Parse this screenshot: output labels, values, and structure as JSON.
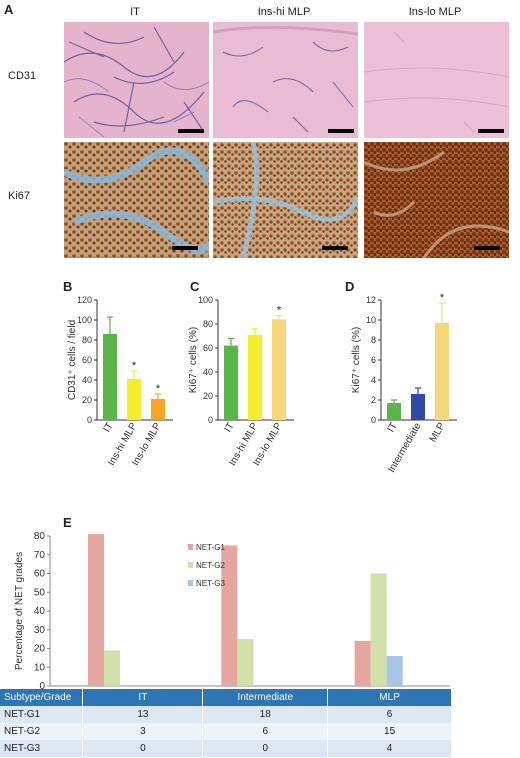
{
  "panel_a": {
    "letter": "A",
    "columns": [
      "IT",
      "Ins-hi MLP",
      "Ins-lo MLP"
    ],
    "rows": [
      "CD31",
      "Ki67"
    ]
  },
  "panel_b": {
    "letter": "B"
  },
  "panel_c": {
    "letter": "C"
  },
  "panel_d": {
    "letter": "D"
  },
  "panel_e": {
    "letter": "E"
  },
  "table": {
    "header": [
      "Subtype/Grade",
      "IT",
      "Intermediate",
      "MLP"
    ],
    "rows": [
      [
        "NET-G1",
        "13",
        "18",
        "6"
      ],
      [
        "NET-G2",
        "3",
        "6",
        "15"
      ],
      [
        "NET-G3",
        "0",
        "0",
        "4"
      ]
    ]
  },
  "chart_data": [
    {
      "id": "B",
      "type": "bar",
      "categories": [
        "IT",
        "Ins-hi MLP",
        "Ins-lo MLP"
      ],
      "values": [
        86,
        41,
        21
      ],
      "errors": [
        17,
        8,
        5
      ],
      "significance": [
        "",
        "*",
        "*"
      ],
      "colors": [
        "#5ab54a",
        "#f5ec2a",
        "#f5a623"
      ],
      "ylabel": "CD31⁺ cells / field",
      "ylim": [
        0,
        120
      ],
      "yticks": [
        0,
        20,
        40,
        60,
        80,
        100,
        120
      ]
    },
    {
      "id": "C",
      "type": "bar",
      "categories": [
        "IT",
        "Ins-hi MLP",
        "Ins-lo MLP"
      ],
      "values": [
        62,
        71,
        84
      ],
      "errors": [
        6,
        5,
        3
      ],
      "significance": [
        "",
        "",
        "*"
      ],
      "colors": [
        "#5ab54a",
        "#f5ec2a",
        "#f8d77a"
      ],
      "ylabel": "Ki67⁺ cells (%)",
      "ylim": [
        0,
        100
      ],
      "yticks": [
        0,
        20,
        40,
        60,
        80,
        100
      ]
    },
    {
      "id": "D",
      "type": "bar",
      "categories": [
        "IT",
        "Intermediate",
        "MLP"
      ],
      "values": [
        1.7,
        2.6,
        9.7
      ],
      "errors": [
        0.3,
        0.6,
        2.0
      ],
      "significance": [
        "",
        "",
        "*"
      ],
      "colors": [
        "#5ab54a",
        "#2e4aa8",
        "#f8d77a"
      ],
      "ylabel": "Ki67⁺ cells (%)",
      "ylim": [
        0,
        12
      ],
      "yticks": [
        0,
        2,
        4,
        6,
        8,
        10,
        12
      ]
    },
    {
      "id": "E",
      "type": "bar",
      "categories": [
        "IT",
        "Intermediate",
        "MLP"
      ],
      "series": [
        {
          "name": "NET-G1",
          "values": [
            81,
            75,
            24
          ],
          "color": "#e6a6a0"
        },
        {
          "name": "NET-G2",
          "values": [
            19,
            25,
            60
          ],
          "color": "#cfe0a8"
        },
        {
          "name": "NET-G3",
          "values": [
            0,
            0,
            16
          ],
          "color": "#a8c4e8"
        }
      ],
      "ylabel": "Percentage of NET grades",
      "ylim": [
        0,
        80
      ],
      "yticks": [
        0,
        10,
        20,
        30,
        40,
        50,
        60,
        70,
        80
      ],
      "legend": "top-right"
    }
  ]
}
